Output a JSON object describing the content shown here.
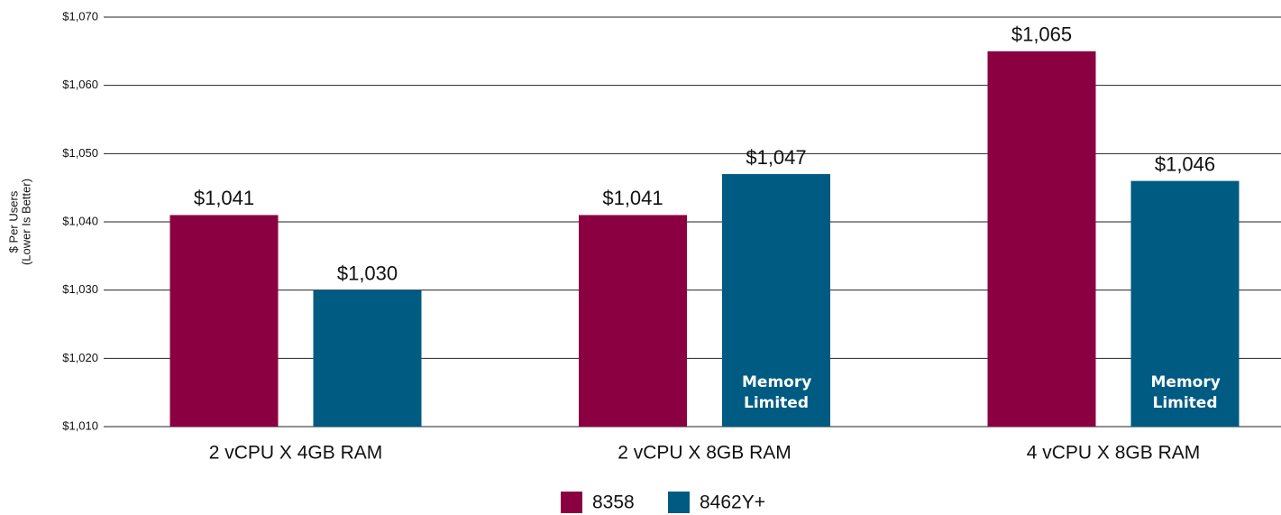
{
  "chart_data": {
    "type": "bar",
    "ylabel": [
      "$ Per Users",
      "(Lower Is Better)"
    ],
    "categories": [
      "2 vCPU X 4GB RAM",
      "2 vCPU X 8GB RAM",
      "4 vCPU X 8GB RAM"
    ],
    "series": [
      {
        "name": "8358",
        "color": "#8b0041",
        "values": [
          1041,
          1041,
          1065
        ],
        "value_labels": [
          "$1,041",
          "$1,041",
          "$1,065"
        ],
        "notes": [
          null,
          null,
          null
        ]
      },
      {
        "name": "8462Y+",
        "color": "#005b82",
        "values": [
          1030,
          1047,
          1046
        ],
        "value_labels": [
          "$1,030",
          "$1,047",
          "$1,046"
        ],
        "notes": [
          null,
          "Memory Limited",
          "Memory Limited"
        ]
      }
    ],
    "ylim": [
      1010,
      1070
    ],
    "yticks": [
      {
        "value": 1010,
        "label": "$1,010"
      },
      {
        "value": 1020,
        "label": "$1,020"
      },
      {
        "value": 1030,
        "label": "$1,030"
      },
      {
        "value": 1040,
        "label": "$1,040"
      },
      {
        "value": 1050,
        "label": "$1,050"
      },
      {
        "value": 1060,
        "label": "$1,060"
      },
      {
        "value": 1070,
        "label": "$1,070"
      }
    ],
    "grid": true,
    "legend": "bottom"
  }
}
